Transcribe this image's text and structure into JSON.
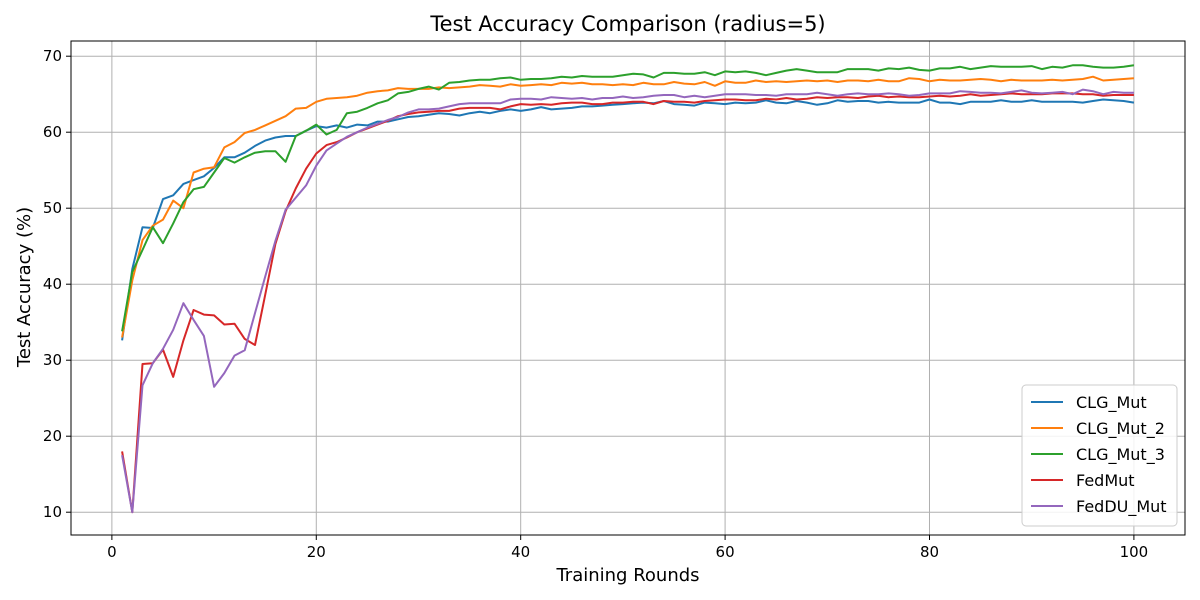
{
  "chart_data": {
    "type": "line",
    "title": "Test Accuracy Comparison (radius=5)",
    "xlabel": "Training Rounds",
    "ylabel": "Test Accuracy (%)",
    "xlim": [
      -4,
      105
    ],
    "ylim": [
      7,
      72
    ],
    "xticks": [
      0,
      20,
      40,
      60,
      80,
      100
    ],
    "yticks": [
      10,
      20,
      30,
      40,
      50,
      60,
      70
    ],
    "grid": true,
    "legend_position": "bottom-right",
    "x": [
      1,
      2,
      3,
      4,
      5,
      6,
      7,
      8,
      9,
      10,
      11,
      12,
      13,
      14,
      15,
      16,
      17,
      18,
      19,
      20,
      21,
      22,
      23,
      24,
      25,
      26,
      27,
      28,
      29,
      30,
      31,
      32,
      33,
      34,
      35,
      36,
      37,
      38,
      39,
      40,
      41,
      42,
      43,
      44,
      45,
      46,
      47,
      48,
      49,
      50,
      51,
      52,
      53,
      54,
      55,
      56,
      57,
      58,
      59,
      60,
      61,
      62,
      63,
      64,
      65,
      66,
      67,
      68,
      69,
      70,
      71,
      72,
      73,
      74,
      75,
      76,
      77,
      78,
      79,
      80,
      81,
      82,
      83,
      84,
      85,
      86,
      87,
      88,
      89,
      90,
      91,
      92,
      93,
      94,
      95,
      96,
      97,
      98,
      99,
      100
    ],
    "series": [
      {
        "name": "CLG_Mut",
        "color": "#1f77b4",
        "values": [
          32.6,
          42.0,
          47.5,
          47.4,
          51.2,
          51.7,
          53.2,
          53.7,
          54.2,
          55.3,
          56.7,
          56.7,
          57.3,
          58.2,
          58.9,
          59.3,
          59.5,
          59.5,
          60.2,
          60.8,
          60.6,
          60.9,
          60.6,
          61.0,
          60.9,
          61.4,
          61.4,
          61.7,
          62.0,
          62.1,
          62.3,
          62.5,
          62.4,
          62.2,
          62.5,
          62.7,
          62.5,
          62.8,
          63.0,
          62.8,
          63.0,
          63.3,
          63.0,
          63.1,
          63.2,
          63.4,
          63.4,
          63.5,
          63.6,
          63.7,
          63.8,
          63.9,
          63.8,
          64.1,
          63.7,
          63.6,
          63.5,
          63.9,
          63.8,
          63.7,
          63.9,
          63.8,
          63.9,
          64.2,
          63.9,
          63.8,
          64.1,
          63.9,
          63.6,
          63.8,
          64.2,
          64.0,
          64.1,
          64.1,
          63.9,
          64.0,
          63.9,
          63.9,
          63.9,
          64.3,
          63.9,
          63.9,
          63.7,
          64.0,
          64.0,
          64.0,
          64.2,
          64.0,
          64.0,
          64.2,
          64.0,
          64.0,
          64.0,
          64.0,
          63.9,
          64.1,
          64.3,
          64.2,
          64.1,
          63.9
        ]
      },
      {
        "name": "CLG_Mut_2",
        "color": "#ff7f0e",
        "values": [
          33.0,
          40.5,
          45.8,
          47.7,
          48.5,
          51.0,
          50.0,
          54.7,
          55.2,
          55.4,
          58.0,
          58.7,
          59.9,
          60.3,
          60.9,
          61.5,
          62.1,
          63.1,
          63.2,
          64.0,
          64.4,
          64.5,
          64.6,
          64.8,
          65.2,
          65.4,
          65.5,
          65.8,
          65.7,
          65.7,
          65.7,
          65.9,
          65.8,
          65.9,
          66.0,
          66.2,
          66.1,
          66.0,
          66.3,
          66.1,
          66.2,
          66.3,
          66.2,
          66.5,
          66.4,
          66.5,
          66.3,
          66.3,
          66.2,
          66.3,
          66.2,
          66.5,
          66.3,
          66.3,
          66.6,
          66.4,
          66.3,
          66.6,
          66.1,
          66.7,
          66.5,
          66.5,
          66.8,
          66.6,
          66.7,
          66.6,
          66.7,
          66.8,
          66.7,
          66.8,
          66.6,
          66.8,
          66.8,
          66.7,
          66.9,
          66.7,
          66.7,
          67.1,
          67.0,
          66.7,
          66.9,
          66.8,
          66.8,
          66.9,
          67.0,
          66.9,
          66.7,
          66.9,
          66.8,
          66.8,
          66.8,
          66.9,
          66.8,
          66.9,
          67.0,
          67.3,
          66.8,
          66.9,
          67.0,
          67.1
        ]
      },
      {
        "name": "CLG_Mut_3",
        "color": "#2ca02c",
        "values": [
          33.8,
          41.6,
          44.5,
          47.5,
          45.4,
          48.0,
          50.8,
          52.5,
          52.8,
          54.7,
          56.6,
          56.0,
          56.7,
          57.3,
          57.5,
          57.5,
          56.1,
          59.5,
          60.2,
          61.0,
          59.7,
          60.3,
          62.5,
          62.7,
          63.2,
          63.8,
          64.2,
          65.1,
          65.3,
          65.7,
          66.0,
          65.6,
          66.5,
          66.6,
          66.8,
          66.9,
          66.9,
          67.1,
          67.2,
          66.9,
          67.0,
          67.0,
          67.1,
          67.3,
          67.2,
          67.4,
          67.3,
          67.3,
          67.3,
          67.5,
          67.7,
          67.6,
          67.2,
          67.8,
          67.8,
          67.7,
          67.7,
          67.9,
          67.5,
          68.0,
          67.9,
          68.0,
          67.8,
          67.5,
          67.8,
          68.1,
          68.3,
          68.1,
          67.9,
          67.9,
          67.9,
          68.3,
          68.3,
          68.3,
          68.1,
          68.4,
          68.3,
          68.5,
          68.2,
          68.1,
          68.4,
          68.4,
          68.6,
          68.3,
          68.5,
          68.7,
          68.6,
          68.6,
          68.6,
          68.7,
          68.3,
          68.6,
          68.5,
          68.8,
          68.8,
          68.6,
          68.5,
          68.5,
          68.6,
          68.8
        ]
      },
      {
        "name": "FedMut",
        "color": "#d62728",
        "values": [
          18.0,
          10.0,
          29.5,
          29.6,
          31.4,
          27.8,
          32.6,
          36.6,
          36.0,
          35.9,
          34.7,
          34.8,
          32.8,
          32.0,
          38.6,
          45.3,
          49.6,
          52.6,
          55.2,
          57.2,
          58.3,
          58.7,
          59.3,
          60.0,
          60.5,
          61.0,
          61.5,
          62.1,
          62.4,
          62.6,
          62.7,
          62.8,
          62.8,
          63.1,
          63.2,
          63.2,
          63.2,
          63.0,
          63.4,
          63.7,
          63.6,
          63.7,
          63.6,
          63.8,
          63.9,
          63.9,
          63.7,
          63.7,
          63.9,
          63.9,
          64.0,
          64.0,
          63.7,
          64.1,
          64.0,
          64.0,
          63.9,
          64.1,
          64.2,
          64.3,
          64.3,
          64.2,
          64.2,
          64.4,
          64.3,
          64.5,
          64.3,
          64.4,
          64.6,
          64.5,
          64.6,
          64.6,
          64.5,
          64.7,
          64.8,
          64.6,
          64.7,
          64.6,
          64.6,
          64.7,
          64.8,
          64.7,
          64.8,
          65.0,
          64.8,
          64.9,
          65.0,
          65.1,
          65.0,
          65.0,
          65.0,
          65.1,
          65.1,
          65.1,
          65.0,
          65.0,
          64.8,
          64.9,
          64.9,
          64.9
        ]
      },
      {
        "name": "FedDU_Mut",
        "color": "#9467bd",
        "values": [
          17.5,
          10.0,
          26.7,
          29.6,
          31.5,
          34.0,
          37.5,
          35.3,
          33.2,
          26.5,
          28.3,
          30.6,
          31.3,
          36.2,
          41.0,
          45.7,
          49.8,
          51.4,
          53.0,
          55.6,
          57.6,
          58.5,
          59.4,
          60.0,
          60.6,
          61.1,
          61.6,
          62.0,
          62.6,
          63.0,
          63.0,
          63.1,
          63.4,
          63.7,
          63.8,
          63.8,
          63.8,
          63.8,
          64.3,
          64.4,
          64.4,
          64.3,
          64.6,
          64.5,
          64.4,
          64.5,
          64.3,
          64.5,
          64.5,
          64.7,
          64.5,
          64.6,
          64.8,
          64.9,
          64.9,
          64.6,
          64.8,
          64.6,
          64.8,
          65.0,
          65.0,
          65.0,
          64.9,
          64.9,
          64.8,
          65.0,
          65.0,
          65.0,
          65.2,
          65.0,
          64.8,
          65.0,
          65.1,
          65.0,
          65.0,
          65.1,
          65.0,
          64.8,
          64.9,
          65.1,
          65.1,
          65.1,
          65.4,
          65.3,
          65.2,
          65.2,
          65.1,
          65.3,
          65.5,
          65.2,
          65.1,
          65.2,
          65.3,
          65.0,
          65.6,
          65.4,
          65.0,
          65.3,
          65.2,
          65.2
        ]
      }
    ]
  }
}
